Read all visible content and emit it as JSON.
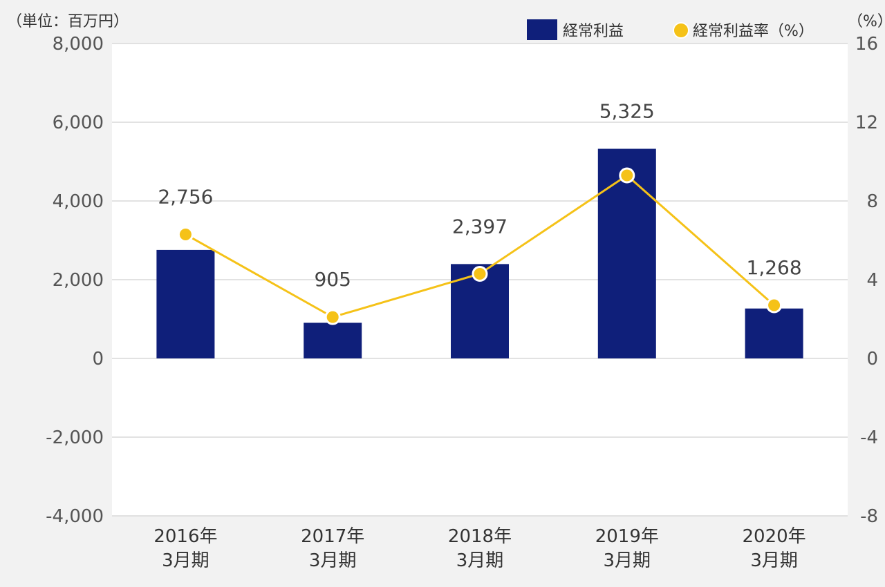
{
  "chart_data": {
    "type": "bar",
    "categories": [
      [
        "2016年",
        "3月期"
      ],
      [
        "2017年",
        "3月期"
      ],
      [
        "2018年",
        "3月期"
      ],
      [
        "2019年",
        "3月期"
      ],
      [
        "2020年",
        "3月期"
      ]
    ],
    "series": [
      {
        "name": "経常利益",
        "type": "bar",
        "axis": "left",
        "values": [
          2756,
          905,
          2397,
          5325,
          1268
        ],
        "color": "#0f1f7a"
      },
      {
        "name": "経常利益率（%）",
        "type": "line",
        "axis": "right",
        "values": [
          6.3,
          2.1,
          4.3,
          9.3,
          2.7
        ],
        "color": "#f5c218"
      }
    ],
    "data_labels": [
      "2,756",
      "905",
      "2,397",
      "5,325",
      "1,268"
    ],
    "y_left": {
      "unit_label": "（単位：百万円）",
      "range": [
        -4000,
        8000
      ],
      "ticks": [
        8000,
        6000,
        4000,
        2000,
        0,
        -2000,
        -4000
      ],
      "tick_labels": [
        "8,000",
        "6,000",
        "4,000",
        "2,000",
        "0",
        "-2,000",
        "-4,000"
      ]
    },
    "y_right": {
      "unit_label": "（%）",
      "range": [
        -8,
        16
      ],
      "ticks": [
        16,
        12,
        8,
        4,
        0,
        -4,
        -8
      ],
      "tick_labels": [
        "16",
        "12",
        "8",
        "4",
        "0",
        "-4",
        "-8"
      ]
    },
    "legend": {
      "position": "top-right",
      "items": [
        "経常利益",
        "経常利益率（%）"
      ]
    },
    "grid": true
  }
}
